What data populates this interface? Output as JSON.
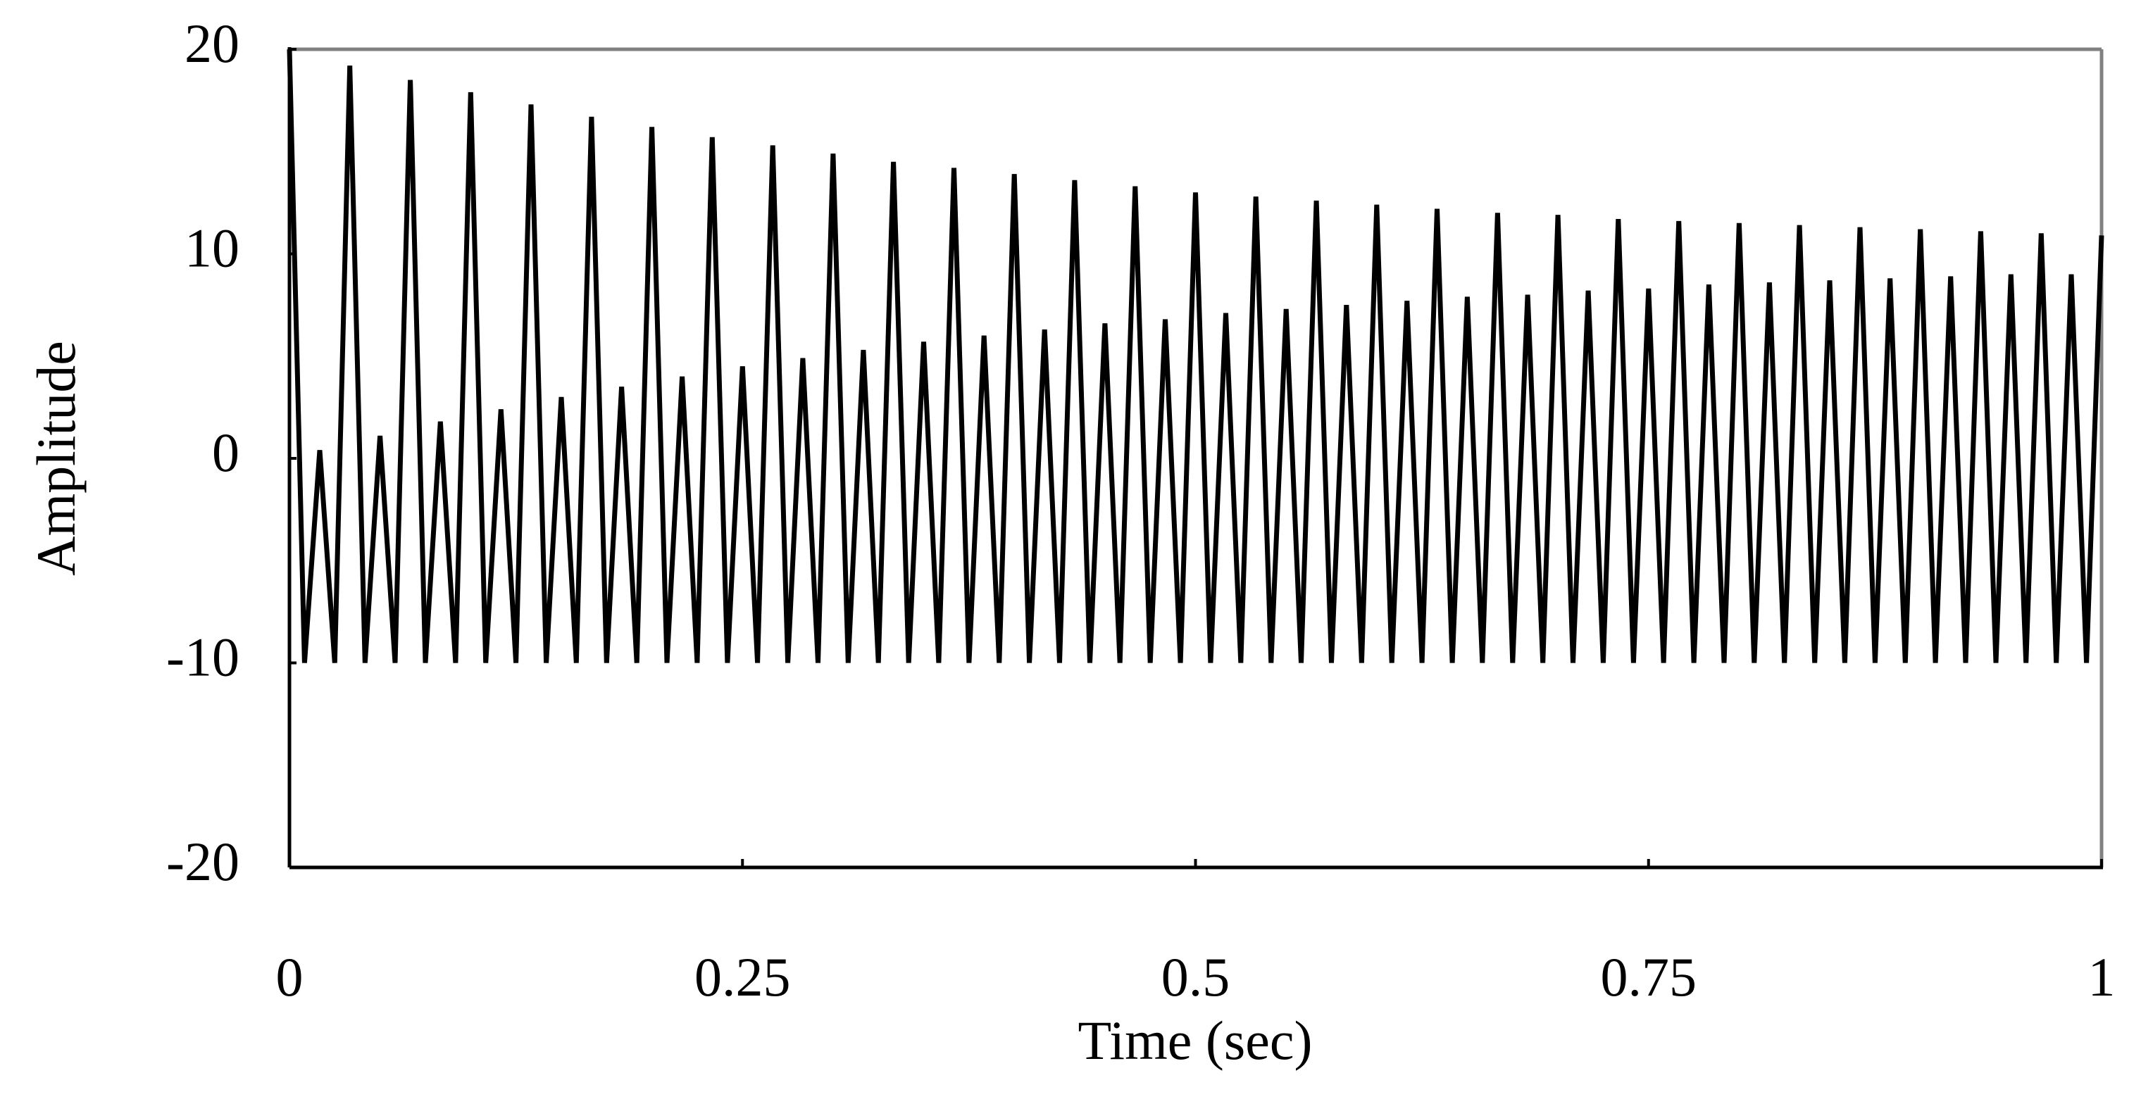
{
  "chart_data": {
    "type": "line",
    "xlabel": "Time (sec)",
    "ylabel": "Amplitude",
    "x": [
      0,
      0.0083,
      0.0167,
      0.025,
      0.0333,
      0.0417,
      0.05,
      0.0583,
      0.0667,
      0.075,
      0.0833,
      0.0917,
      0.1,
      0.1083,
      0.1167,
      0.125,
      0.1333,
      0.1417,
      0.15,
      0.1583,
      0.1667,
      0.175,
      0.1833,
      0.1917,
      0.2,
      0.2083,
      0.2167,
      0.225,
      0.2333,
      0.2417,
      0.25,
      0.2583,
      0.2667,
      0.275,
      0.2833,
      0.2917,
      0.3,
      0.3083,
      0.3167,
      0.325,
      0.3333,
      0.3417,
      0.35,
      0.3583,
      0.3667,
      0.375,
      0.3833,
      0.3917,
      0.4,
      0.4083,
      0.4167,
      0.425,
      0.4333,
      0.4417,
      0.45,
      0.4583,
      0.4667,
      0.475,
      0.4833,
      0.4917,
      0.5,
      0.5083,
      0.5167,
      0.525,
      0.5333,
      0.5417,
      0.55,
      0.5583,
      0.5667,
      0.575,
      0.5833,
      0.5917,
      0.6,
      0.6083,
      0.6167,
      0.625,
      0.6333,
      0.6417,
      0.65,
      0.6583,
      0.6667,
      0.675,
      0.6833,
      0.6917,
      0.7,
      0.7083,
      0.7167,
      0.725,
      0.7333,
      0.7417,
      0.75,
      0.7583,
      0.7667,
      0.775,
      0.7833,
      0.7917,
      0.8,
      0.8083,
      0.8167,
      0.825,
      0.8333,
      0.8417,
      0.85,
      0.8583,
      0.8667,
      0.875,
      0.8833,
      0.8917,
      0.9,
      0.9083,
      0.9167,
      0.925,
      0.9333,
      0.9417,
      0.95,
      0.9583,
      0.9667,
      0.975,
      0.9833,
      0.9917,
      1
    ],
    "values": [
      20,
      -10,
      0.4,
      -10,
      19.2,
      -10,
      1.1,
      -10,
      18.5,
      -10,
      1.8,
      -10,
      17.9,
      -10,
      2.4,
      -10,
      17.3,
      -10,
      3.0,
      -10,
      16.7,
      -10,
      3.5,
      -10,
      16.2,
      -10,
      4.0,
      -10,
      15.7,
      -10,
      4.5,
      -10,
      15.3,
      -10,
      4.9,
      -10,
      14.9,
      -10,
      5.3,
      -10,
      14.5,
      -10,
      5.7,
      -10,
      14.2,
      -10,
      6.0,
      -10,
      13.9,
      -10,
      6.3,
      -10,
      13.6,
      -10,
      6.6,
      -10,
      13.3,
      -10,
      6.8,
      -10,
      13.0,
      -10,
      7.1,
      -10,
      12.8,
      -10,
      7.3,
      -10,
      12.6,
      -10,
      7.5,
      -10,
      12.4,
      -10,
      7.7,
      -10,
      12.2,
      -10,
      7.9,
      -10,
      12.0,
      -10,
      8.0,
      -10,
      11.9,
      -10,
      8.2,
      -10,
      11.7,
      -10,
      8.3,
      -10,
      11.6,
      -10,
      8.5,
      -10,
      11.5,
      -10,
      8.6,
      -10,
      11.4,
      -10,
      8.7,
      -10,
      11.3,
      -10,
      8.8,
      -10,
      11.2,
      -10,
      8.9,
      -10,
      11.1,
      -10,
      9.0,
      -10,
      11.0,
      -10,
      9.0,
      -10,
      10.9
    ],
    "color": "#000000",
    "xlim": [
      0,
      1
    ],
    "xticks": [
      0,
      0.25,
      0.5,
      0.75,
      1
    ],
    "ylim": [
      -20,
      20
    ],
    "yticks": [
      -20,
      -10,
      0,
      10,
      20
    ],
    "grid": false
  }
}
